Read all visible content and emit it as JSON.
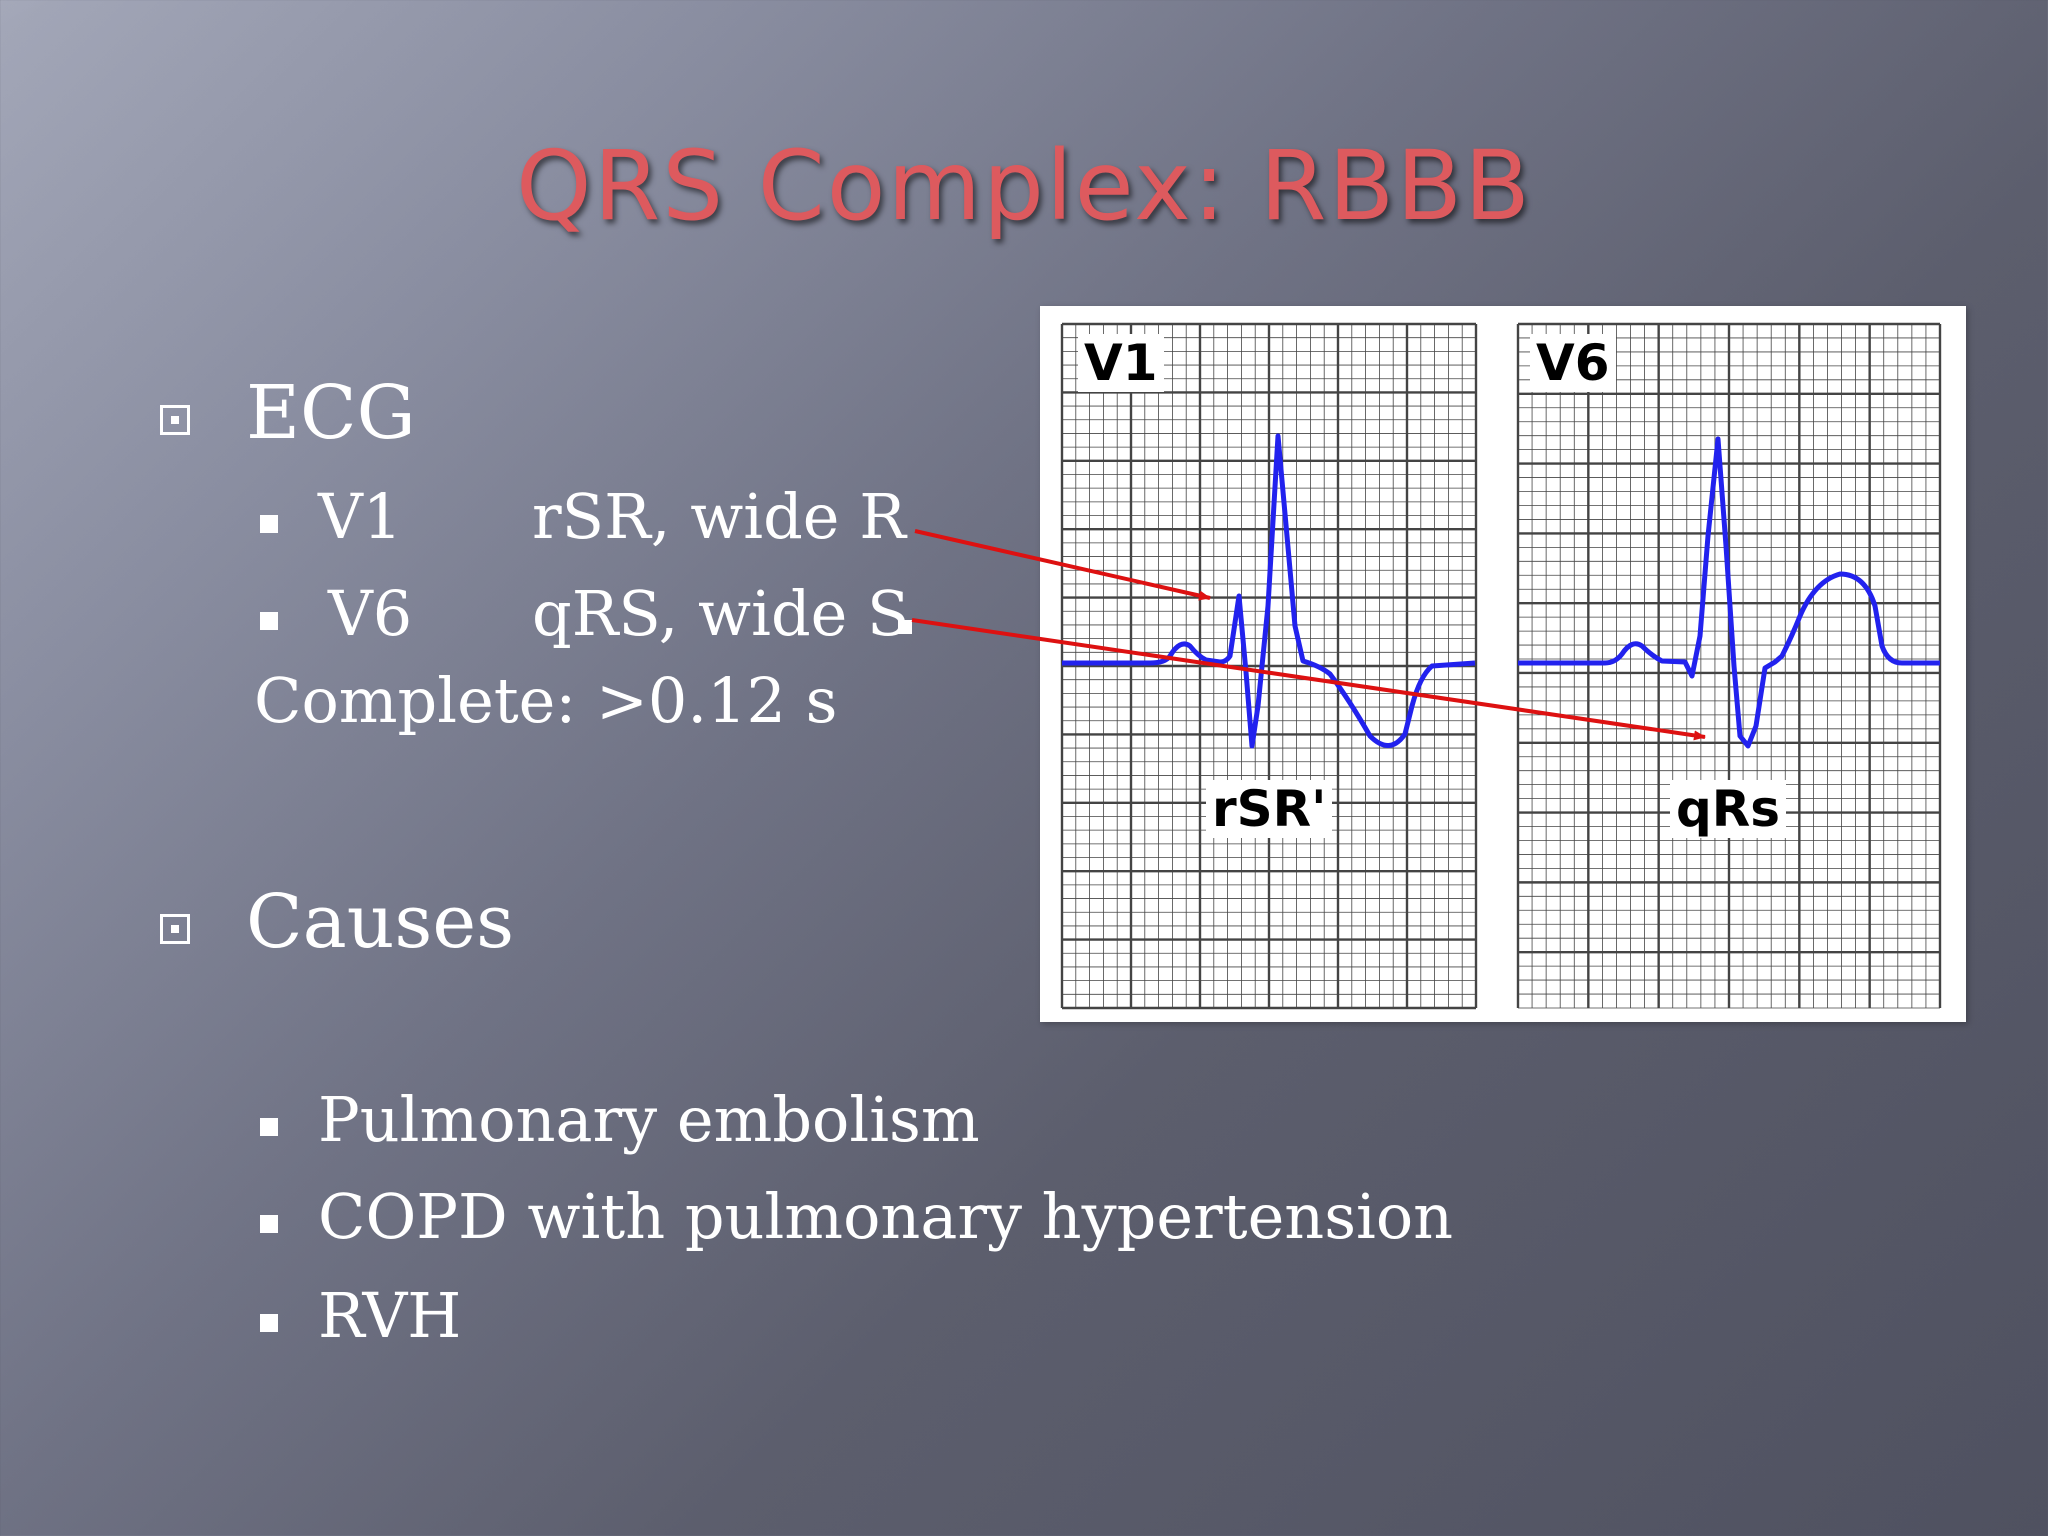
{
  "title": "QRS Complex: RBBB",
  "ecg_section": {
    "heading": "ECG",
    "items": [
      {
        "lead": "V1",
        "finding": "rSR, wide R"
      },
      {
        "lead": "V6",
        "finding": "qRS, wide S"
      }
    ],
    "note": "Complete: >0.12 s"
  },
  "causes_section": {
    "heading": "Causes",
    "items": [
      "Pulmonary embolism",
      "COPD with pulmonary hypertension",
      "RVH"
    ]
  },
  "ecg_figure": {
    "panels": [
      {
        "lead": "V1",
        "pattern": "rSR'"
      },
      {
        "lead": "V6",
        "pattern": "qRs"
      }
    ],
    "trace_color": "#2222ee",
    "arrow_color": "#dd1111",
    "grid_color": "#444444"
  }
}
